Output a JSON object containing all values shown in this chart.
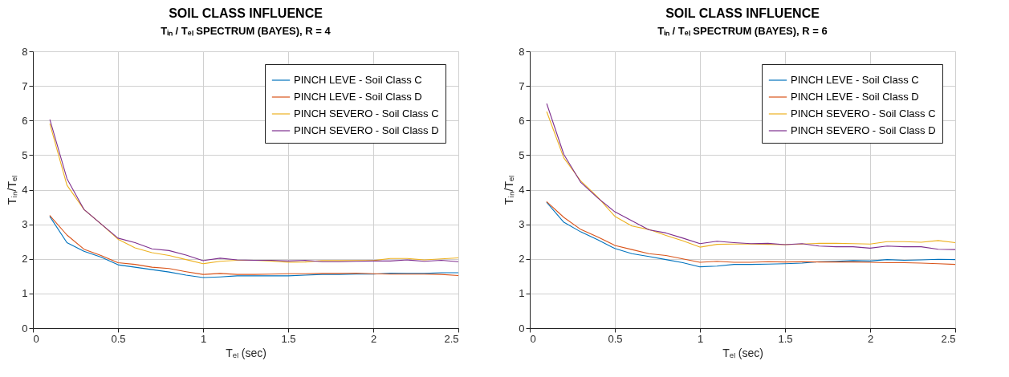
{
  "chart_data": [
    {
      "type": "line",
      "title": "SOIL CLASS INFLUENCE",
      "subtitle": "Tᵢₙ / Tₑₗ SPECTRUM (BAYES), R = 4",
      "xlabel": "Tₑₗ (sec)",
      "ylabel": "Tᵢₙ/Tₑₗ",
      "x": [
        0.1,
        0.2,
        0.3,
        0.4,
        0.5,
        0.6,
        0.7,
        0.8,
        0.9,
        1.0,
        1.1,
        1.2,
        1.3,
        1.4,
        1.5,
        1.6,
        1.7,
        1.8,
        1.9,
        2.0,
        2.1,
        2.2,
        2.3,
        2.4,
        2.5
      ],
      "series": [
        {
          "name": "PINCH LEVE - Soil Class C",
          "color": "#0072bd",
          "values": [
            3.22,
            2.47,
            2.22,
            2.05,
            1.83,
            1.76,
            1.69,
            1.62,
            1.53,
            1.46,
            1.48,
            1.51,
            1.51,
            1.51,
            1.51,
            1.53,
            1.55,
            1.55,
            1.56,
            1.56,
            1.59,
            1.58,
            1.58,
            1.6,
            1.6
          ]
        },
        {
          "name": "PINCH LEVE - Soil Class D",
          "color": "#d95319",
          "values": [
            3.25,
            2.69,
            2.28,
            2.1,
            1.89,
            1.84,
            1.76,
            1.72,
            1.63,
            1.55,
            1.58,
            1.55,
            1.55,
            1.56,
            1.57,
            1.57,
            1.58,
            1.58,
            1.59,
            1.57,
            1.56,
            1.56,
            1.56,
            1.55,
            1.52
          ]
        },
        {
          "name": "PINCH SEVERO - Soil Class C",
          "color": "#edb120",
          "values": [
            5.9,
            4.13,
            3.43,
            3.01,
            2.57,
            2.32,
            2.18,
            2.1,
            1.98,
            1.86,
            1.93,
            1.96,
            1.96,
            1.94,
            1.9,
            1.91,
            1.95,
            1.95,
            1.95,
            1.95,
            2.01,
            2.01,
            1.97,
            2.0,
            2.03
          ]
        },
        {
          "name": "PINCH SEVERO - Soil Class D",
          "color": "#7e2f8e",
          "values": [
            6.02,
            4.32,
            3.43,
            3.01,
            2.6,
            2.47,
            2.29,
            2.24,
            2.11,
            1.95,
            2.02,
            1.97,
            1.96,
            1.96,
            1.94,
            1.96,
            1.92,
            1.92,
            1.93,
            1.94,
            1.94,
            1.97,
            1.93,
            1.96,
            1.92
          ]
        }
      ],
      "xlim": [
        0,
        2.5
      ],
      "ylim": [
        0,
        8
      ],
      "xticks": [
        0,
        0.5,
        1,
        1.5,
        2,
        2.5
      ],
      "yticks": [
        0,
        1,
        2,
        3,
        4,
        5,
        6,
        7,
        8
      ],
      "grid": true,
      "legend": "top right"
    },
    {
      "type": "line",
      "title": "SOIL CLASS INFLUENCE",
      "subtitle": "Tᵢₙ / Tₑₗ SPECTRUM (BAYES), R = 6",
      "xlabel": "Tₑₗ (sec)",
      "ylabel": "Tᵢₙ/Tₑₗ",
      "x": [
        0.1,
        0.2,
        0.3,
        0.4,
        0.5,
        0.6,
        0.7,
        0.8,
        0.9,
        1.0,
        1.1,
        1.2,
        1.3,
        1.4,
        1.5,
        1.6,
        1.7,
        1.8,
        1.9,
        2.0,
        2.1,
        2.2,
        2.3,
        2.4,
        2.5
      ],
      "series": [
        {
          "name": "PINCH LEVE - Soil Class C",
          "color": "#0072bd",
          "values": [
            3.63,
            3.06,
            2.78,
            2.55,
            2.3,
            2.15,
            2.07,
            1.98,
            1.89,
            1.77,
            1.79,
            1.84,
            1.84,
            1.85,
            1.86,
            1.88,
            1.92,
            1.93,
            1.95,
            1.94,
            1.98,
            1.96,
            1.97,
            1.99,
            1.98
          ]
        },
        {
          "name": "PINCH LEVE - Soil Class D",
          "color": "#d95319",
          "values": [
            3.65,
            3.2,
            2.85,
            2.63,
            2.39,
            2.27,
            2.15,
            2.1,
            2.0,
            1.9,
            1.93,
            1.9,
            1.9,
            1.92,
            1.91,
            1.92,
            1.91,
            1.91,
            1.91,
            1.9,
            1.89,
            1.89,
            1.88,
            1.86,
            1.84
          ]
        },
        {
          "name": "PINCH SEVERO - Soil Class C",
          "color": "#edb120",
          "values": [
            6.25,
            4.92,
            4.25,
            3.78,
            3.23,
            2.95,
            2.85,
            2.68,
            2.52,
            2.34,
            2.42,
            2.43,
            2.43,
            2.42,
            2.41,
            2.43,
            2.45,
            2.45,
            2.44,
            2.43,
            2.5,
            2.5,
            2.48,
            2.53,
            2.47
          ]
        },
        {
          "name": "PINCH SEVERO - Soil Class D",
          "color": "#7e2f8e",
          "values": [
            6.48,
            5.02,
            4.21,
            3.76,
            3.36,
            3.1,
            2.84,
            2.75,
            2.6,
            2.44,
            2.51,
            2.47,
            2.44,
            2.45,
            2.41,
            2.44,
            2.37,
            2.35,
            2.35,
            2.31,
            2.37,
            2.35,
            2.35,
            2.28,
            2.27
          ]
        }
      ],
      "xlim": [
        0,
        2.5
      ],
      "ylim": [
        0,
        8
      ],
      "xticks": [
        0,
        0.5,
        1,
        1.5,
        2,
        2.5
      ],
      "yticks": [
        0,
        1,
        2,
        3,
        4,
        5,
        6,
        7,
        8
      ],
      "grid": true,
      "legend": "top right"
    }
  ]
}
